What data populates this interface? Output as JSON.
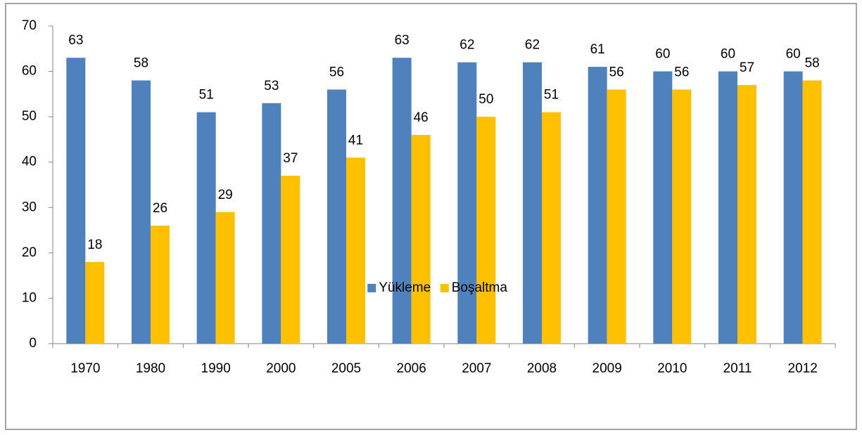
{
  "chart_data": {
    "type": "bar",
    "categories": [
      "1970",
      "1980",
      "1990",
      "2000",
      "2005",
      "2006",
      "2007",
      "2008",
      "2009",
      "2010",
      "2011",
      "2012"
    ],
    "series": [
      {
        "name": "Yükleme",
        "color": "#4f81bd",
        "values": [
          63,
          58,
          51,
          53,
          56,
          63,
          62,
          62,
          61,
          60,
          60,
          60
        ]
      },
      {
        "name": "Boşaltma",
        "color": "#ffc000",
        "values": [
          18,
          26,
          29,
          37,
          41,
          46,
          50,
          51,
          56,
          56,
          57,
          58
        ]
      }
    ],
    "ylim": [
      0,
      70
    ],
    "yticks": [
      0,
      10,
      20,
      30,
      40,
      50,
      60,
      70
    ],
    "grid": false,
    "legend": "bottom"
  }
}
